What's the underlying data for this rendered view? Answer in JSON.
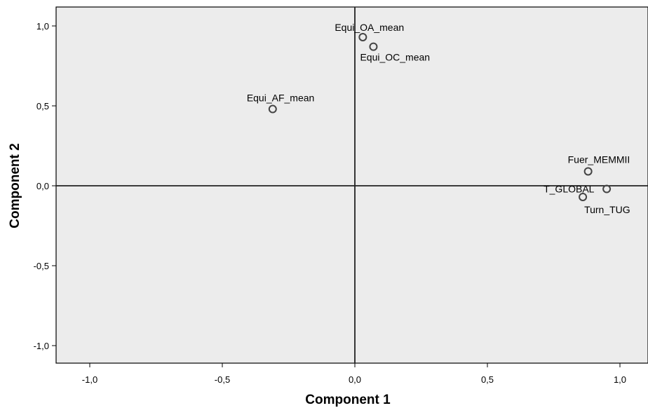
{
  "chart_data": {
    "type": "scatter",
    "title": "",
    "xlabel": "Component 1",
    "ylabel": "Component 2",
    "xlim": [
      -1.1,
      1.07
    ],
    "ylim": [
      -1.1,
      1.1
    ],
    "x_ticks": [
      -1.0,
      -0.5,
      0.0,
      0.5,
      1.0
    ],
    "x_tick_labels": [
      "-1,0",
      "-0,5",
      "0,0",
      "0,5",
      "1,0"
    ],
    "y_ticks": [
      1.0,
      0.5,
      0.0,
      -0.5,
      -1.0
    ],
    "y_tick_labels": [
      "1,0",
      "0,5",
      "0,0",
      "-0,5",
      "-1,0"
    ],
    "reference_lines": {
      "x": 0,
      "y": 0
    },
    "grid": false,
    "background_color": "#ececec",
    "points": [
      {
        "label": "Equi_OA_mean",
        "x": 0.03,
        "y": 0.93
      },
      {
        "label": "Equi_OC_mean",
        "x": 0.07,
        "y": 0.87
      },
      {
        "label": "Equi_AF_mean",
        "x": -0.31,
        "y": 0.48
      },
      {
        "label": "Fuer_MEMMII",
        "x": 0.88,
        "y": 0.09
      },
      {
        "label": "T_GLOBAL",
        "x": 0.95,
        "y": -0.02
      },
      {
        "label": "Turn_TUG",
        "x": 0.86,
        "y": -0.07
      }
    ]
  }
}
